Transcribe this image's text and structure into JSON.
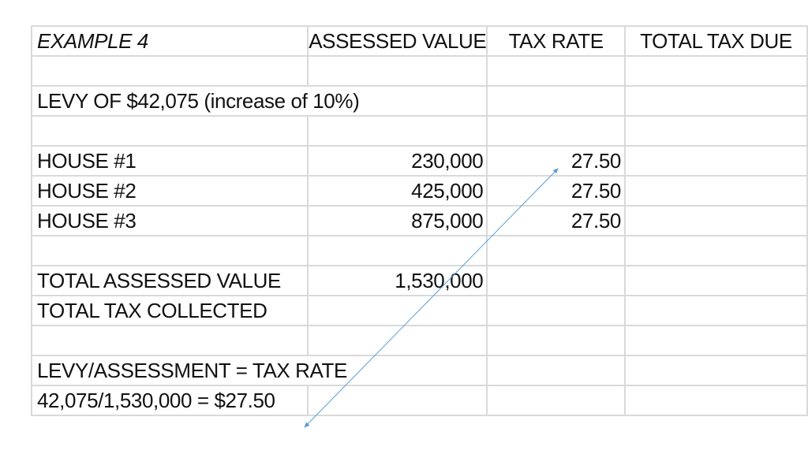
{
  "header": {
    "example": "EXAMPLE 4",
    "assessed_value": "ASSESSED VALUE",
    "tax_rate": "TAX RATE",
    "total_tax_due": "TOTAL TAX DUE"
  },
  "levy_label": "LEVY OF $42,075 (increase of 10%)",
  "houses": [
    {
      "name": "HOUSE #1",
      "assessed": "230,000",
      "rate": "27.50",
      "tax_due": ""
    },
    {
      "name": "HOUSE #2",
      "assessed": "425,000",
      "rate": "27.50",
      "tax_due": ""
    },
    {
      "name": "HOUSE #3",
      "assessed": "875,000",
      "rate": "27.50",
      "tax_due": ""
    }
  ],
  "totals": {
    "assessed_label": "TOTAL ASSESSED VALUE",
    "assessed_value": "1,530,000",
    "collected_label": "TOTAL TAX COLLECTED",
    "collected_value": ""
  },
  "formula": {
    "label": "LEVY/ASSESSMENT = TAX RATE",
    "calc": "42,075/1,530,000 = $27.50"
  },
  "colors": {
    "gridline": "#d9d9d9",
    "arrow": "#5b9bd5",
    "text": "#111111"
  }
}
